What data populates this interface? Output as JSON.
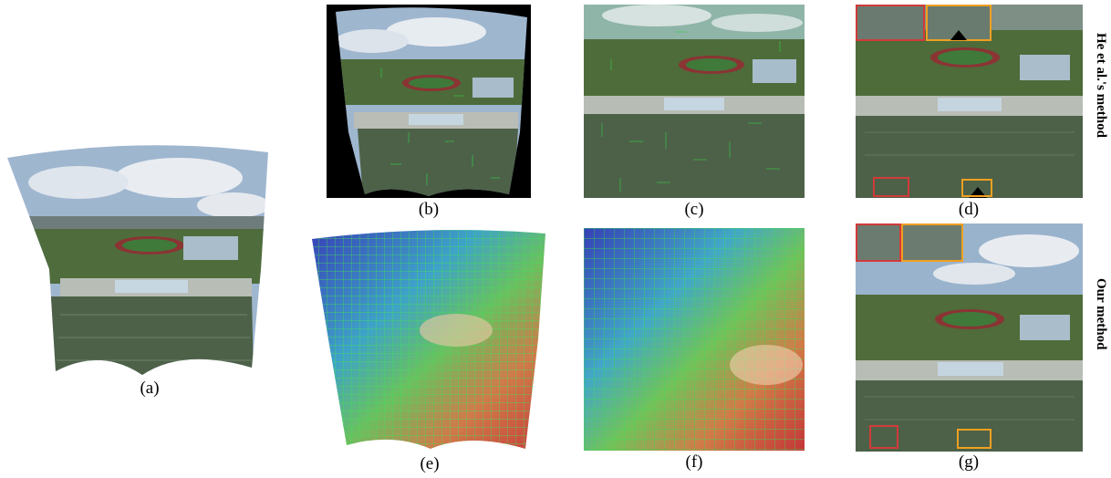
{
  "captions": {
    "a": "(a)",
    "b": "(b)",
    "c": "(c)",
    "d": "(d)",
    "e": "(e)",
    "f": "(f)",
    "g": "(g)"
  },
  "row_labels": {
    "top": "He et al.'s method",
    "bottom": "Our method"
  },
  "colors": {
    "sky": "#8aa8c8",
    "cloud": "#e8ecf0",
    "field": "#4e6a4a",
    "grass": "#4f7a3a",
    "track": "#9a3a3a",
    "roof": "#b9c8d4",
    "mesh_green": "#35d04a",
    "box_red": "#d23a3a",
    "box_orange": "#f0a020"
  }
}
